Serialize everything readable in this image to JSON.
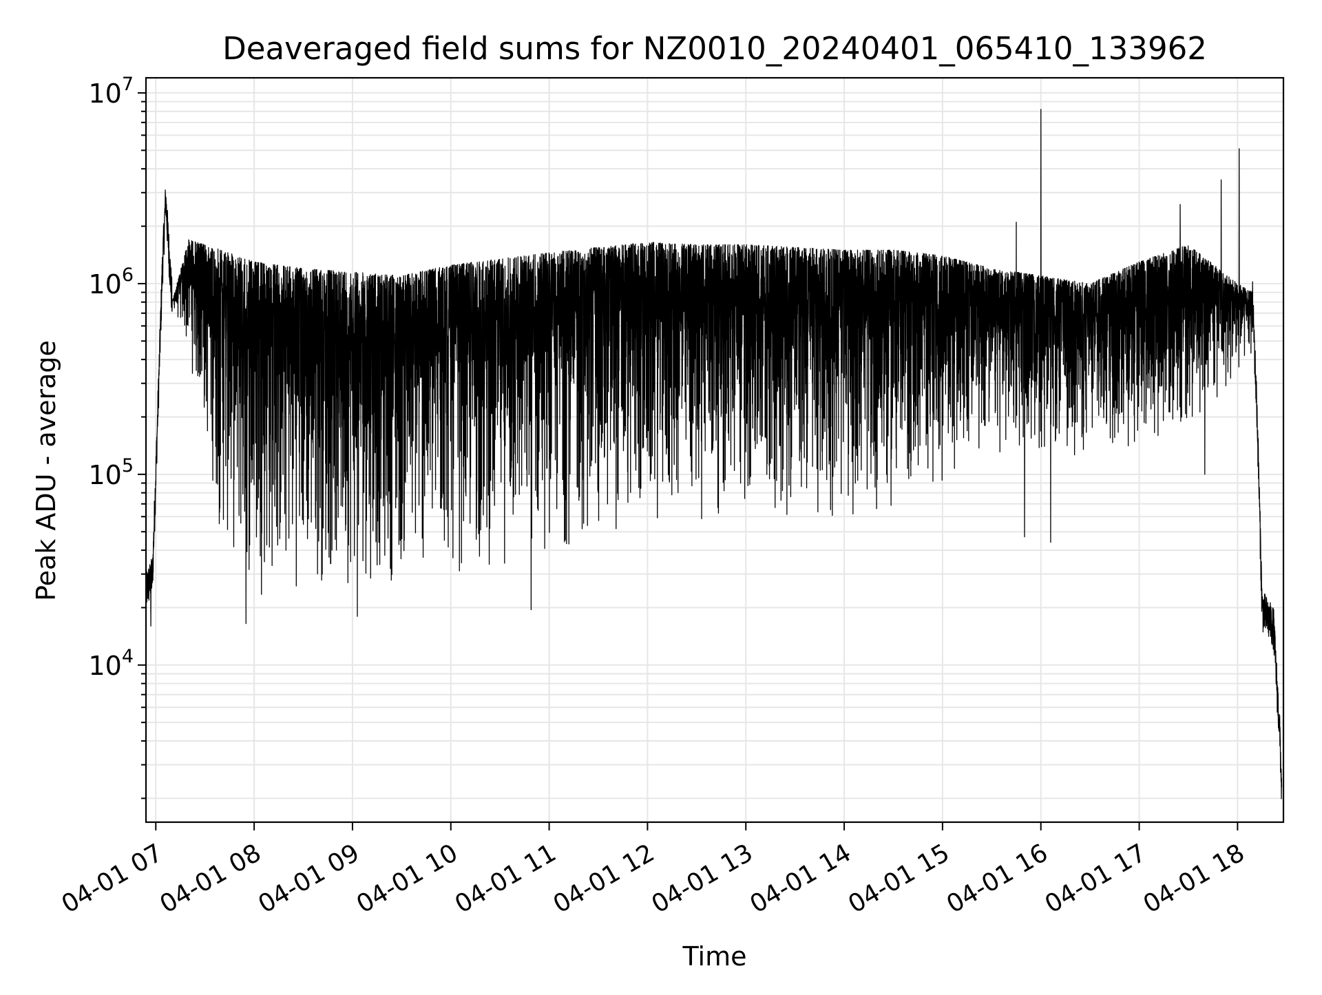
{
  "chart_data": {
    "type": "line",
    "title": "Deaveraged field sums for NZ0010_20240401_065410_133962",
    "xlabel": "Time",
    "ylabel": "Peak ADU - average",
    "yscale": "log",
    "grid": true,
    "legend": "none",
    "colors": {
      "line": "#000000",
      "grid": "#e6e6e6",
      "background": "#ffffff"
    },
    "xlim": [
      "2024-04-01 06:54",
      "2024-04-01 18:28"
    ],
    "ylim": [
      1500,
      12000000
    ],
    "x_ticks": [
      {
        "t": "2024-04-01 07:00",
        "label": "04-01 07"
      },
      {
        "t": "2024-04-01 08:00",
        "label": "04-01 08"
      },
      {
        "t": "2024-04-01 09:00",
        "label": "04-01 09"
      },
      {
        "t": "2024-04-01 10:00",
        "label": "04-01 10"
      },
      {
        "t": "2024-04-01 11:00",
        "label": "04-01 11"
      },
      {
        "t": "2024-04-01 12:00",
        "label": "04-01 12"
      },
      {
        "t": "2024-04-01 13:00",
        "label": "04-01 13"
      },
      {
        "t": "2024-04-01 14:00",
        "label": "04-01 14"
      },
      {
        "t": "2024-04-01 15:00",
        "label": "04-01 15"
      },
      {
        "t": "2024-04-01 16:00",
        "label": "04-01 16"
      },
      {
        "t": "2024-04-01 17:00",
        "label": "04-01 17"
      },
      {
        "t": "2024-04-01 18:00",
        "label": "04-01 18"
      }
    ],
    "y_ticks": [
      {
        "value": 10000,
        "base": "10",
        "exp": "4"
      },
      {
        "value": 100000,
        "base": "10",
        "exp": "5"
      },
      {
        "value": 1000000,
        "base": "10",
        "exp": "6"
      },
      {
        "value": 10000000,
        "base": "10",
        "exp": "7"
      }
    ],
    "series": [
      {
        "peaks": [
          [
            "2024-04-01 06:54",
            25000
          ],
          [
            "2024-04-01 06:58",
            30000
          ],
          [
            "2024-04-01 07:00",
            100000
          ],
          [
            "2024-04-01 07:04",
            1200000
          ],
          [
            "2024-04-01 07:06",
            2800000
          ],
          [
            "2024-04-01 07:10",
            800000
          ],
          [
            "2024-04-01 07:20",
            1700000
          ],
          [
            "2024-04-01 07:40",
            1500000
          ],
          [
            "2024-04-01 08:00",
            1300000
          ],
          [
            "2024-04-01 08:30",
            1200000
          ],
          [
            "2024-04-01 09:00",
            1150000
          ],
          [
            "2024-04-01 09:30",
            1100000
          ],
          [
            "2024-04-01 10:00",
            1250000
          ],
          [
            "2024-04-01 10:30",
            1350000
          ],
          [
            "2024-04-01 11:00",
            1450000
          ],
          [
            "2024-04-01 11:30",
            1550000
          ],
          [
            "2024-04-01 12:00",
            1650000
          ],
          [
            "2024-04-01 12:30",
            1600000
          ],
          [
            "2024-04-01 13:00",
            1600000
          ],
          [
            "2024-04-01 13:30",
            1550000
          ],
          [
            "2024-04-01 14:00",
            1500000
          ],
          [
            "2024-04-01 14:30",
            1500000
          ],
          [
            "2024-04-01 15:00",
            1400000
          ],
          [
            "2024-04-01 15:30",
            1200000
          ],
          [
            "2024-04-01 16:00",
            1100000
          ],
          [
            "2024-04-01 16:30",
            1000000
          ],
          [
            "2024-04-01 17:00",
            1300000
          ],
          [
            "2024-04-01 17:30",
            1600000
          ],
          [
            "2024-04-01 18:00",
            1000000
          ],
          [
            "2024-04-01 18:09",
            900000
          ],
          [
            "2024-04-01 18:12",
            200000
          ],
          [
            "2024-04-01 18:15",
            20000
          ],
          [
            "2024-04-01 18:22",
            16000
          ],
          [
            "2024-04-01 18:26",
            4000
          ],
          [
            "2024-04-01 18:27",
            2000
          ]
        ],
        "troughs": [
          [
            "2024-04-01 07:10",
            800000
          ],
          [
            "2024-04-01 07:20",
            400000
          ],
          [
            "2024-04-01 07:30",
            150000
          ],
          [
            "2024-04-01 07:40",
            40000
          ],
          [
            "2024-04-01 08:00",
            22000
          ],
          [
            "2024-04-01 08:30",
            24000
          ],
          [
            "2024-04-01 09:00",
            25000
          ],
          [
            "2024-04-01 09:30",
            26000
          ],
          [
            "2024-04-01 10:00",
            27000
          ],
          [
            "2024-04-01 10:30",
            30000
          ],
          [
            "2024-04-01 11:00",
            36000
          ],
          [
            "2024-04-01 11:30",
            42000
          ],
          [
            "2024-04-01 12:00",
            50000
          ],
          [
            "2024-04-01 12:30",
            55000
          ],
          [
            "2024-04-01 13:00",
            58000
          ],
          [
            "2024-04-01 13:30",
            55000
          ],
          [
            "2024-04-01 14:00",
            55000
          ],
          [
            "2024-04-01 14:30",
            60000
          ],
          [
            "2024-04-01 15:00",
            90000
          ],
          [
            "2024-04-01 15:30",
            120000
          ],
          [
            "2024-04-01 16:00",
            120000
          ],
          [
            "2024-04-01 16:30",
            110000
          ],
          [
            "2024-04-01 17:00",
            130000
          ],
          [
            "2024-04-01 17:30",
            150000
          ],
          [
            "2024-04-01 18:00",
            300000
          ],
          [
            "2024-04-01 18:09",
            400000
          ]
        ],
        "spikes": [
          [
            "2024-04-01 07:06",
            2800000
          ],
          [
            "2024-04-01 15:45",
            2100000
          ],
          [
            "2024-04-01 16:00",
            8200000
          ],
          [
            "2024-04-01 17:25",
            2600000
          ],
          [
            "2024-04-01 17:50",
            3500000
          ],
          [
            "2024-04-01 18:01",
            5100000
          ]
        ],
        "dips": [
          [
            "2024-04-01 06:57",
            16000
          ],
          [
            "2024-04-01 07:55",
            16500
          ],
          [
            "2024-04-01 09:03",
            18000
          ],
          [
            "2024-04-01 10:49",
            19500
          ],
          [
            "2024-04-01 15:50",
            47000
          ],
          [
            "2024-04-01 16:06",
            44000
          ],
          [
            "2024-04-01 17:40",
            100000
          ]
        ]
      }
    ]
  }
}
